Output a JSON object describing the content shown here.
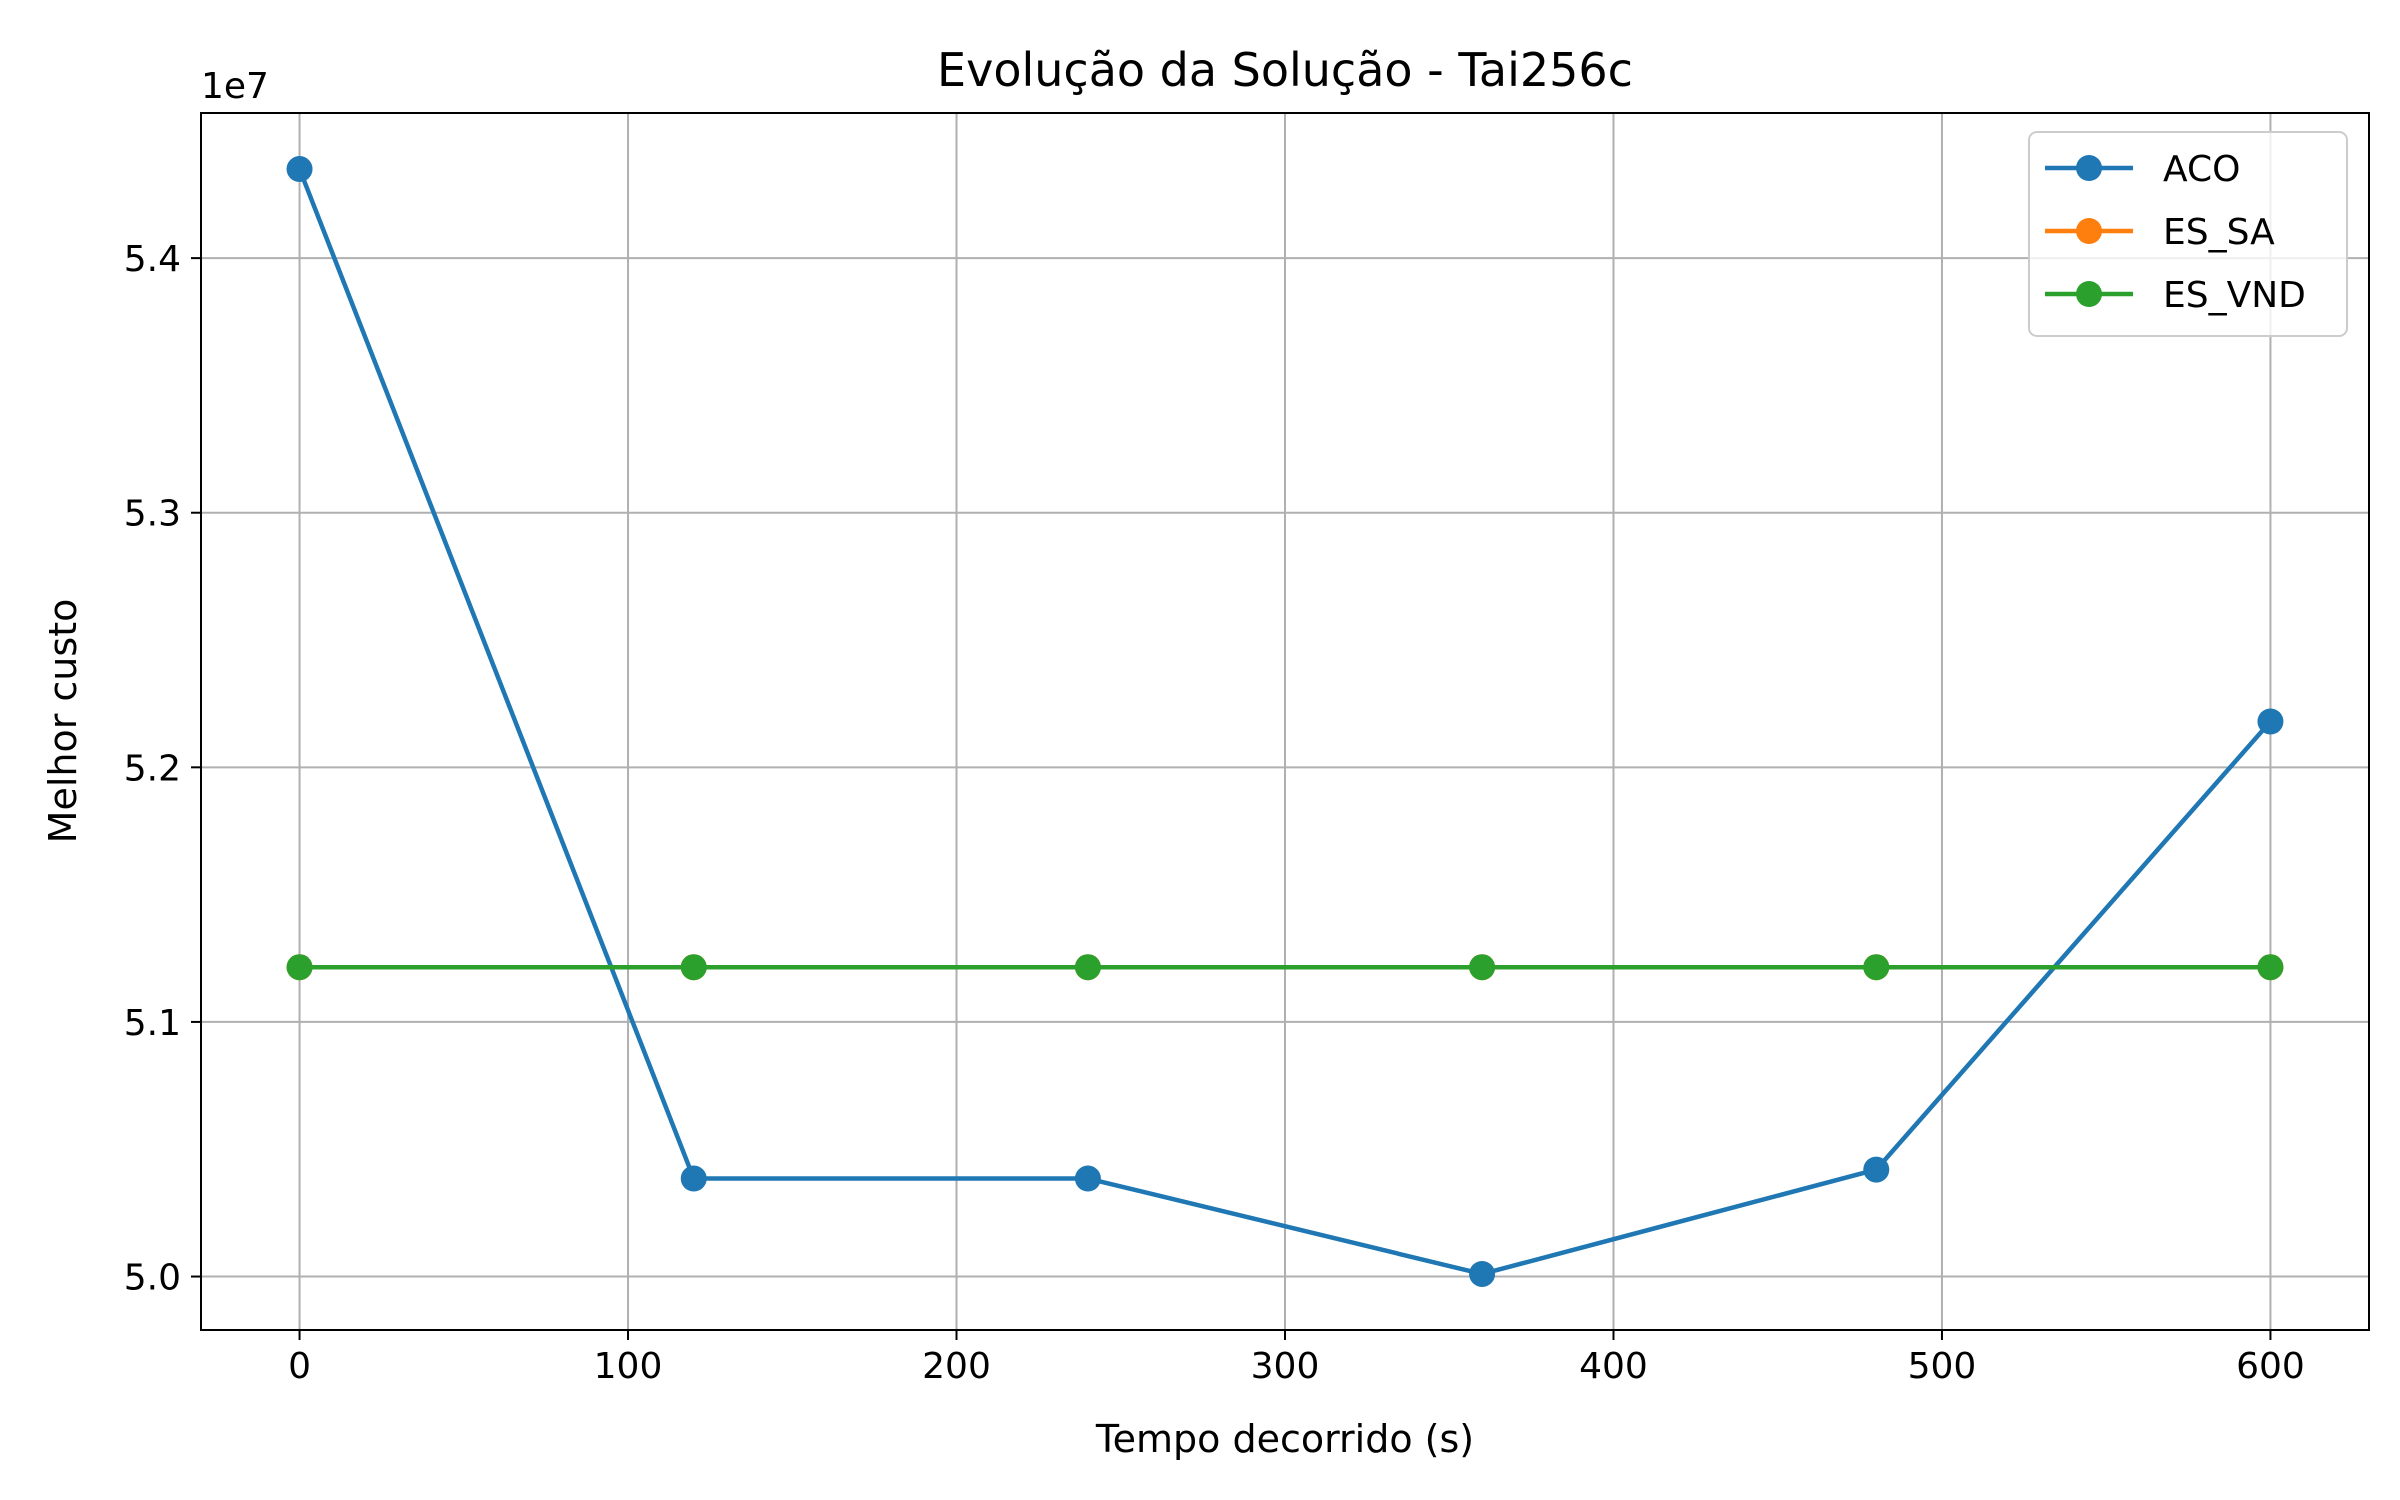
{
  "chart_data": {
    "type": "line",
    "title": "Evolução da Solução - Tai256c",
    "xlabel": "Tempo decorrido (s)",
    "ylabel": "Melhor custo",
    "y_offset_label": "1e7",
    "y_scale_factor": 10000000,
    "xlim": [
      -30,
      630
    ],
    "ylim": [
      49790000,
      54570000
    ],
    "x_ticks": [
      0,
      100,
      200,
      300,
      400,
      500,
      600
    ],
    "x_tick_labels": [
      "0",
      "100",
      "200",
      "300",
      "400",
      "500",
      "600"
    ],
    "y_ticks": [
      50000000,
      51000000,
      52000000,
      53000000,
      54000000
    ],
    "y_tick_labels": [
      "5.0",
      "5.1",
      "5.2",
      "5.3",
      "5.4"
    ],
    "grid": true,
    "legend_position": "top-right",
    "series": [
      {
        "name": "ACO",
        "color": "#1f77b4",
        "marker": "circle",
        "x": [
          0,
          120,
          240,
          360,
          480,
          600
        ],
        "y": [
          54350000,
          50385000,
          50385000,
          50010000,
          50420000,
          52180000
        ]
      },
      {
        "name": "ES_SA",
        "color": "#ff7f0e",
        "marker": "circle",
        "x": [
          0,
          120,
          240,
          360,
          480,
          600
        ],
        "y": [
          51215000,
          51215000,
          51215000,
          51215000,
          51215000,
          51215000
        ]
      },
      {
        "name": "ES_VND",
        "color": "#2ca02c",
        "marker": "circle",
        "x": [
          0,
          120,
          240,
          360,
          480,
          600
        ],
        "y": [
          51215000,
          51215000,
          51215000,
          51215000,
          51215000,
          51215000
        ]
      }
    ]
  }
}
